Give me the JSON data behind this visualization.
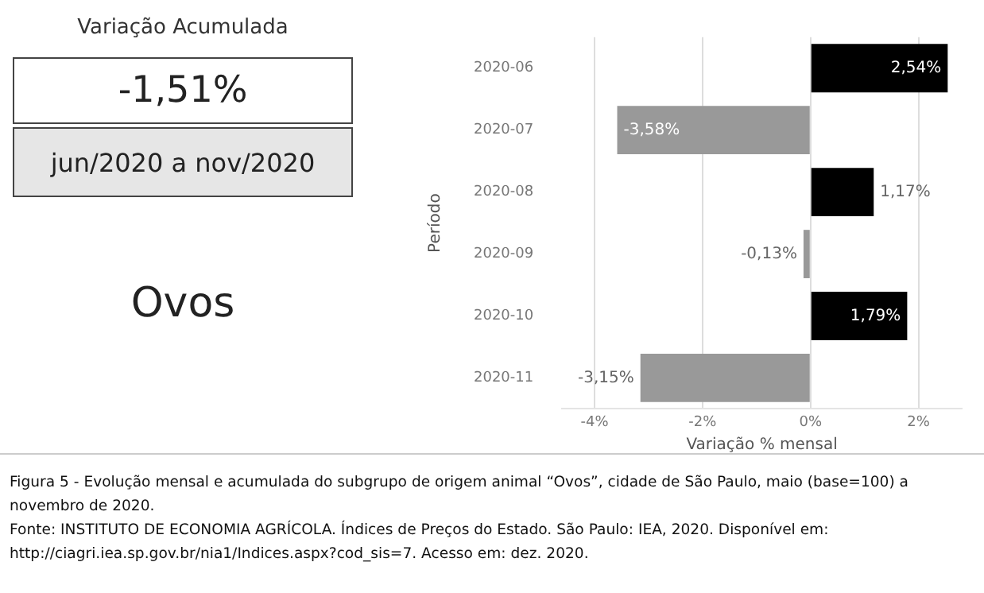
{
  "chart_data": [
    {
      "type": "other",
      "title": "Variação Acumulada",
      "annotations": [
        "-1,51%",
        "jun/2020 a nov/2020",
        "Ovos"
      ]
    },
    {
      "type": "bar",
      "orientation": "horizontal",
      "xlabel": "Variação % mensal",
      "ylabel": "Período",
      "categories": [
        "2020-06",
        "2020-07",
        "2020-08",
        "2020-09",
        "2020-10",
        "2020-11"
      ],
      "values": [
        2.54,
        -3.58,
        1.17,
        -0.13,
        1.79,
        -3.15
      ],
      "colors": [
        "#000000",
        "#999999",
        "#000000",
        "#999999",
        "#000000",
        "#999999"
      ],
      "value_labels": [
        "2,54%",
        "-3,58%",
        "1,17%",
        "-0,13%",
        "1,79%",
        "-3,15%"
      ],
      "xlim": [
        -4.6,
        2.8
      ],
      "xticks": [
        {
          "value": -4,
          "label": "-4%"
        },
        {
          "value": -2,
          "label": "-2%"
        },
        {
          "value": 0,
          "label": "0%"
        },
        {
          "value": 2,
          "label": "2%"
        }
      ],
      "grid": "x",
      "legend": false,
      "annotations": [
        "Figura 5 - Evolução mensal e acumulada do subgrupo de origem animal “Ovos”, cidade de São Paulo, maio (base=100) a novembro de 2020.",
        "Fonte: INSTITUTO DE ECONOMIA AGRÍCOLA. Índices de Preços do Estado. São Paulo: IEA, 2020. Disponível em: http://ciagri.iea.sp.gov.br/nia1/Indices.aspx?cod_sis=7. Acesso em: dez. 2020."
      ]
    }
  ]
}
